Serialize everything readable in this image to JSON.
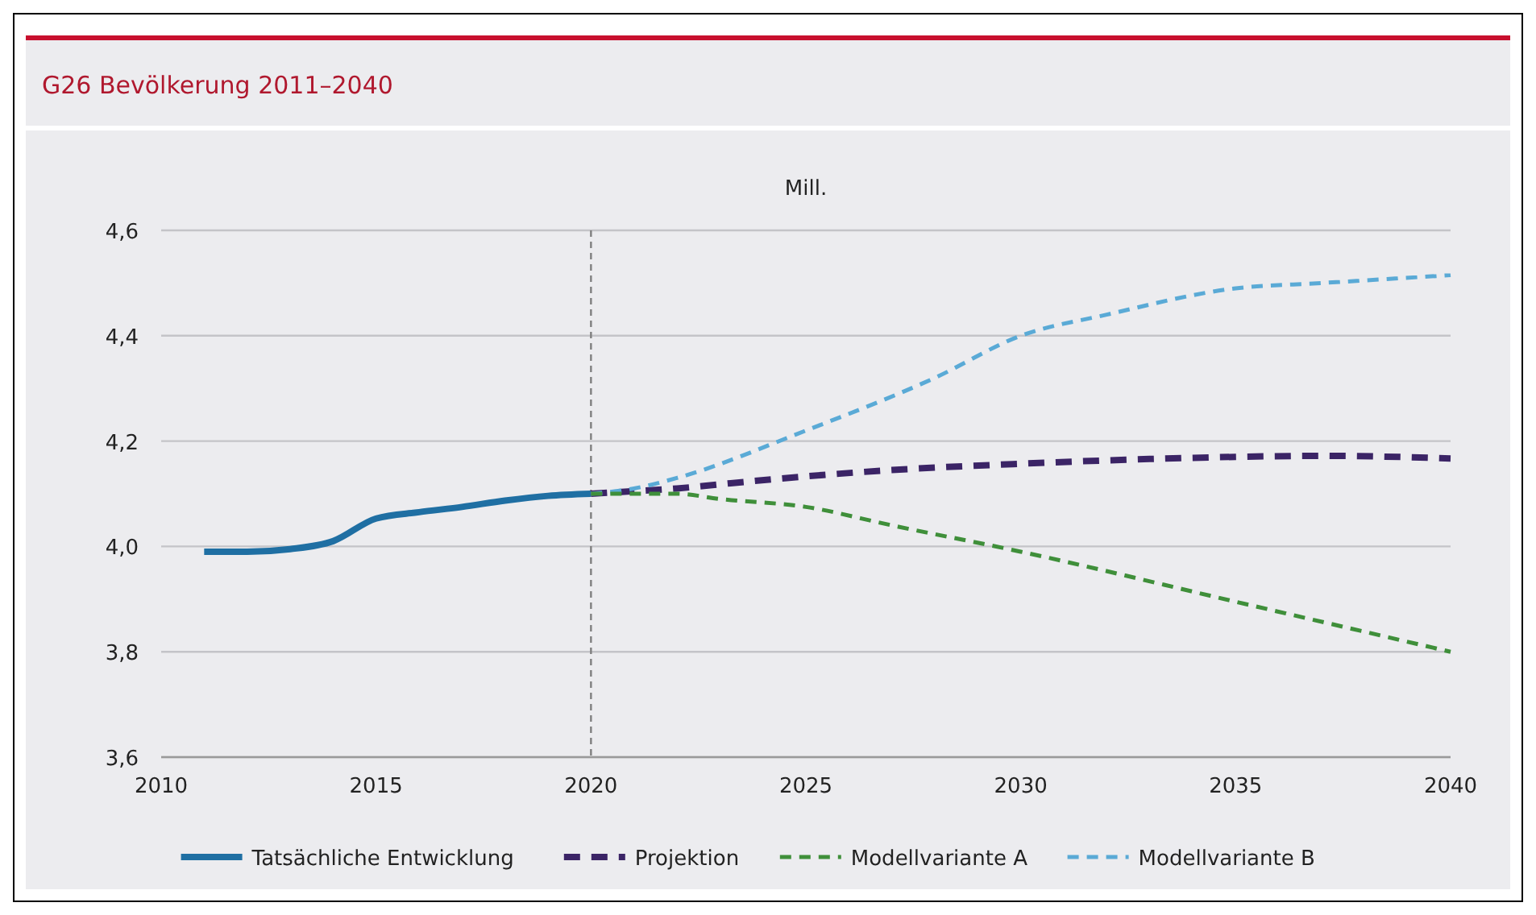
{
  "chart_data": {
    "type": "line",
    "title": "G26  Bevölkerung 2011–2040",
    "ylabel": "Mill.",
    "xlim": [
      2010,
      2040
    ],
    "xticks": [
      2010,
      2015,
      2020,
      2025,
      2030,
      2035,
      2040
    ],
    "ylim": [
      3.6,
      4.6
    ],
    "yticks": [
      {
        "value": 3.6,
        "label": "3,6"
      },
      {
        "value": 3.8,
        "label": "3,8"
      },
      {
        "value": 4.0,
        "label": "4,0"
      },
      {
        "value": 4.2,
        "label": "4,2"
      },
      {
        "value": 4.4,
        "label": "4,4"
      },
      {
        "value": 4.6,
        "label": "4,6"
      }
    ],
    "grid": "y",
    "legend": "bottom",
    "marker": "none",
    "ref_lines": [
      {
        "axis": "x",
        "value": 2020,
        "color": "#808080",
        "line_style": "dashed"
      }
    ],
    "series": [
      {
        "name": "Tatsächliche Entwicklung",
        "color": "#1f6fa3",
        "line_style": "solid",
        "x": [
          2011,
          2012,
          2013,
          2014,
          2015,
          2016,
          2017,
          2018,
          2019,
          2020
        ],
        "values": [
          3.99,
          3.99,
          3.995,
          4.01,
          4.053,
          4.065,
          4.075,
          4.087,
          4.096,
          4.1
        ]
      },
      {
        "name": "Projektion",
        "color": "#3b2466",
        "line_style": "dashed",
        "x": [
          2020,
          2021,
          2022,
          2023,
          2025,
          2027,
          2030,
          2033,
          2035,
          2037,
          2040
        ],
        "values": [
          4.1,
          4.105,
          4.11,
          4.118,
          4.133,
          4.145,
          4.157,
          4.166,
          4.17,
          4.172,
          4.167
        ]
      },
      {
        "name": "Modellvariante A",
        "color": "#3f8f3a",
        "line_style": "dashed",
        "x": [
          2020,
          2022,
          2023,
          2025,
          2027,
          2030,
          2035,
          2040
        ],
        "values": [
          4.1,
          4.1,
          4.09,
          4.075,
          4.04,
          3.99,
          3.895,
          3.8
        ]
      },
      {
        "name": "Modellvariante B",
        "color": "#5aaad6",
        "line_style": "dashed",
        "x": [
          2020,
          2021,
          2022,
          2025,
          2028,
          2030,
          2032,
          2035,
          2037,
          2040
        ],
        "values": [
          4.1,
          4.11,
          4.13,
          4.22,
          4.32,
          4.4,
          4.44,
          4.49,
          4.5,
          4.515
        ]
      }
    ]
  }
}
